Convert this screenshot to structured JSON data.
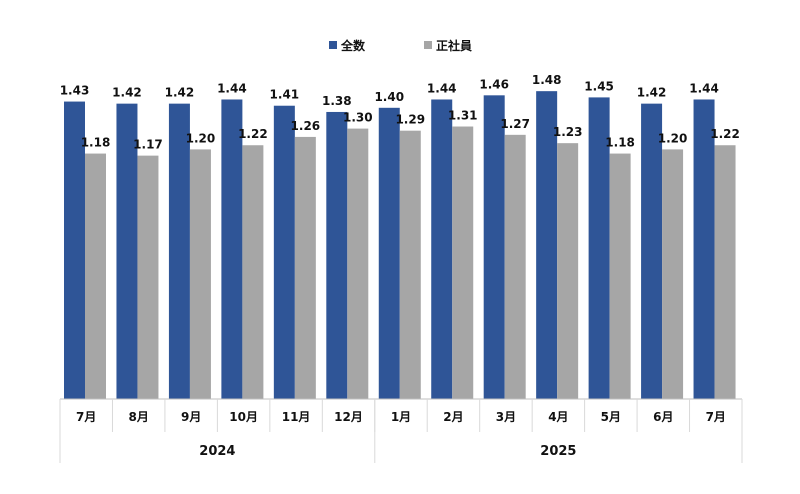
{
  "chart_data": {
    "type": "bar",
    "title": "",
    "xlabel": "",
    "ylabel": "",
    "ylim": [
      0,
      1.9
    ],
    "grid": false,
    "legend_position": "top-center",
    "categories": [
      "7月",
      "8月",
      "9月",
      "10月",
      "11月",
      "12月",
      "1月",
      "2月",
      "3月",
      "4月",
      "5月",
      "6月",
      "7月"
    ],
    "year_groups": [
      {
        "label": "2024",
        "count": 6
      },
      {
        "label": "2025",
        "count": 7
      }
    ],
    "series": [
      {
        "name": "全数",
        "color": "#2F5597",
        "values": [
          1.43,
          1.42,
          1.42,
          1.44,
          1.41,
          1.38,
          1.4,
          1.44,
          1.46,
          1.48,
          1.45,
          1.42,
          1.44
        ]
      },
      {
        "name": "正社員",
        "color": "#A6A6A6",
        "values": [
          1.18,
          1.17,
          1.2,
          1.22,
          1.26,
          1.3,
          1.29,
          1.31,
          1.27,
          1.23,
          1.18,
          1.2,
          1.22
        ]
      }
    ]
  }
}
